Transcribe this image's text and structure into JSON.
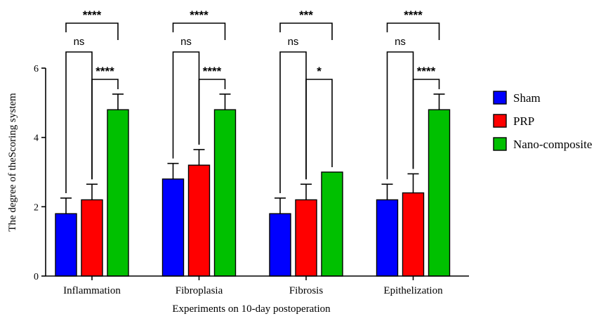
{
  "chart_data": {
    "type": "bar",
    "title": "",
    "xlabel": "Experiments on 10-day postoperation",
    "ylabel": "The degree of theScoring system",
    "ylim": [
      0,
      6
    ],
    "yticks": [
      "0",
      "2",
      "4",
      "6"
    ],
    "categories": [
      "Inflammation",
      "Fibroplasia",
      "Fibrosis",
      "Epithelization"
    ],
    "series": [
      {
        "name": "Sham",
        "color": "#0000ff",
        "values": [
          1.8,
          2.8,
          1.8,
          2.2
        ],
        "errors": [
          0.45,
          0.45,
          0.45,
          0.45
        ]
      },
      {
        "name": "PRP",
        "color": "#ff0000",
        "values": [
          2.2,
          3.2,
          2.2,
          2.4
        ],
        "errors": [
          0.45,
          0.45,
          0.45,
          0.55
        ]
      },
      {
        "name": "Nano-composite",
        "color": "#00c000",
        "values": [
          4.8,
          4.8,
          3.0,
          4.8
        ],
        "errors": [
          0.45,
          0.45,
          0.0,
          0.45
        ]
      }
    ],
    "significance": [
      [
        {
          "from": "Sham",
          "to": "PRP",
          "label": "ns"
        },
        {
          "from": "PRP",
          "to": "Nano-composite",
          "label": "****"
        },
        {
          "from": "Sham",
          "to": "Nano-composite",
          "label": "****"
        }
      ],
      [
        {
          "from": "Sham",
          "to": "PRP",
          "label": "ns"
        },
        {
          "from": "PRP",
          "to": "Nano-composite",
          "label": "****"
        },
        {
          "from": "Sham",
          "to": "Nano-composite",
          "label": "****"
        }
      ],
      [
        {
          "from": "Sham",
          "to": "PRP",
          "label": "ns"
        },
        {
          "from": "PRP",
          "to": "Nano-composite",
          "label": "*"
        },
        {
          "from": "Sham",
          "to": "Nano-composite",
          "label": "***"
        }
      ],
      [
        {
          "from": "Sham",
          "to": "PRP",
          "label": "ns"
        },
        {
          "from": "PRP",
          "to": "Nano-composite",
          "label": "****"
        },
        {
          "from": "Sham",
          "to": "Nano-composite",
          "label": "****"
        }
      ]
    ],
    "legend_position": "right",
    "grid": false
  }
}
